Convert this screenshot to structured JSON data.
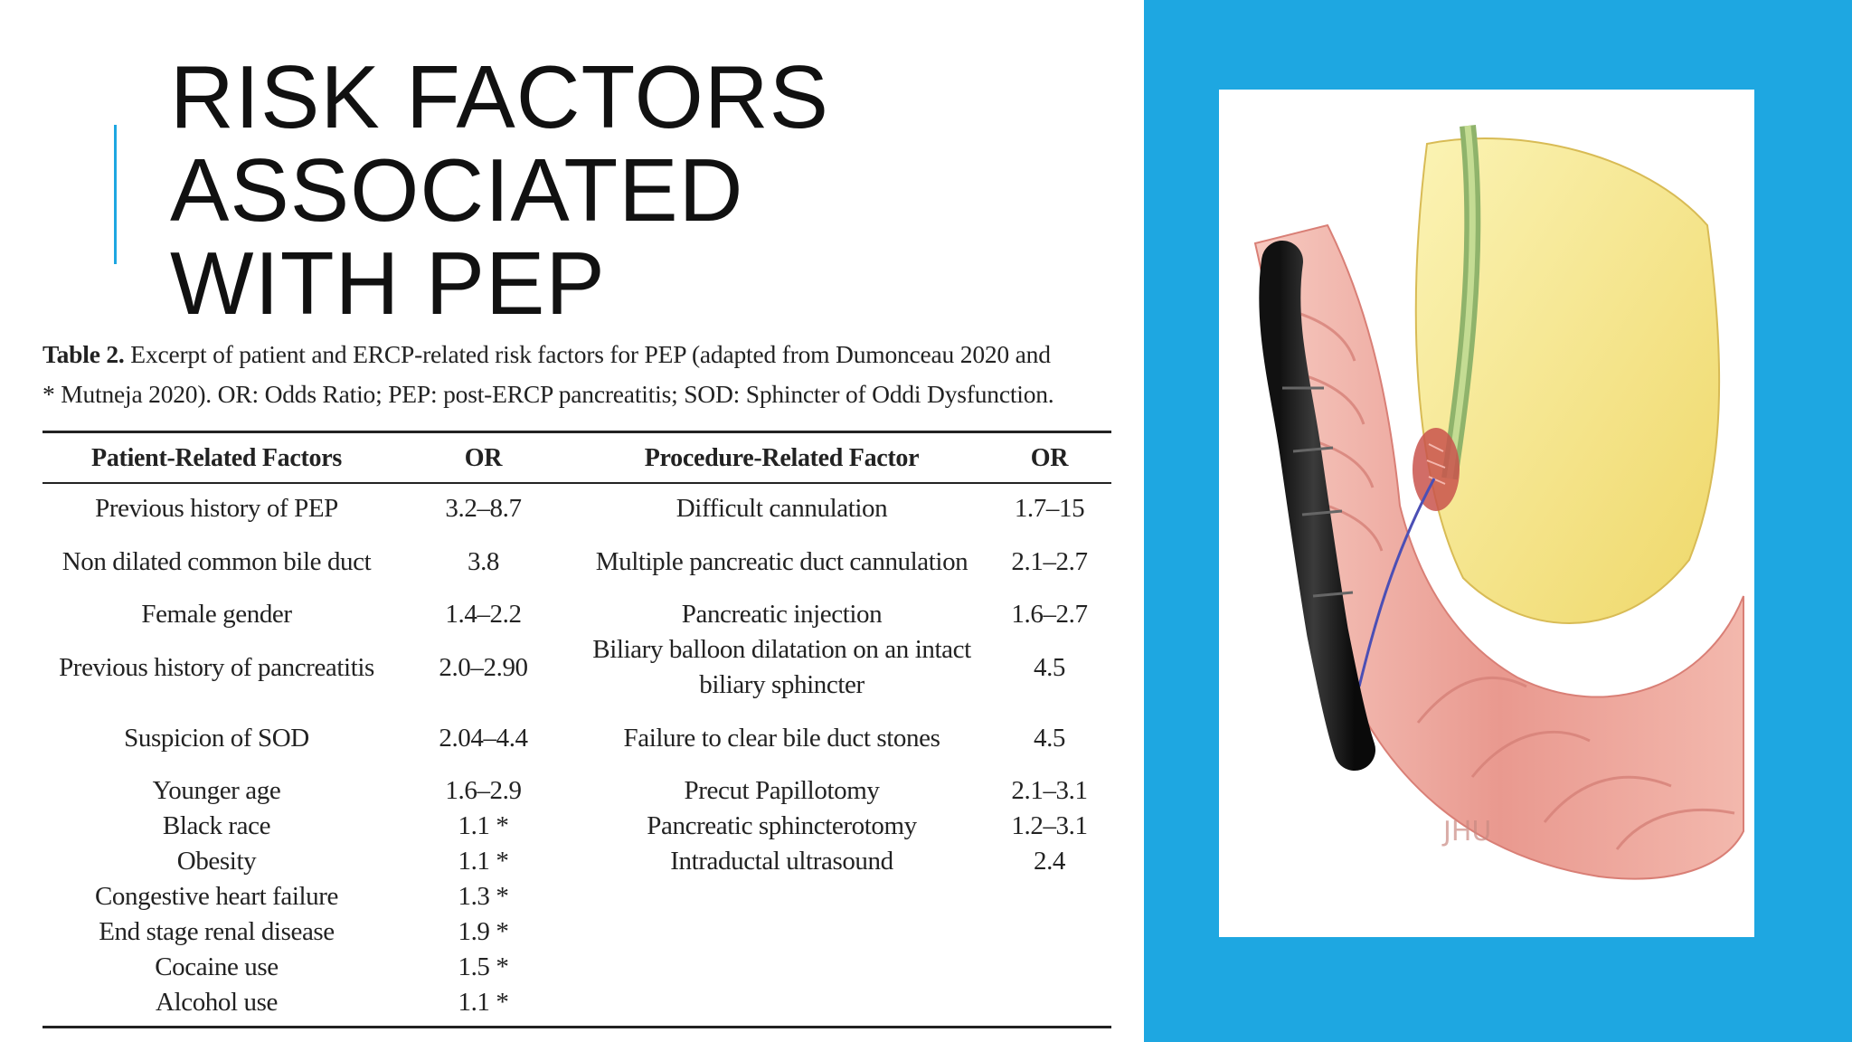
{
  "slide": {
    "title_lines": [
      "RISK FACTORS",
      "ASSOCIATED",
      "WITH PEP"
    ],
    "accent_color": "#1ea7e1",
    "panel_color": "#1ea7e1"
  },
  "table": {
    "caption_bold": "Table 2.",
    "caption_line1": "Excerpt of patient and ERCP-related risk factors for PEP (adapted from Dumonceau 2020 and",
    "caption_line2": "* Mutneja 2020). OR: Odds Ratio; PEP: post-ERCP pancreatitis; SOD: Sphincter of Oddi Dysfunction.",
    "headers": [
      "Patient-Related Factors",
      "OR",
      "Procedure-Related Factor",
      "OR"
    ],
    "rows": [
      [
        "Previous history of PEP",
        "3.2–8.7",
        "Difficult cannulation",
        "1.7–15"
      ],
      [
        "Non dilated common bile duct",
        "3.8",
        "Multiple pancreatic duct cannulation",
        "2.1–2.7"
      ],
      [
        "Female gender",
        "1.4–2.2",
        "Pancreatic injection",
        "1.6–2.7"
      ],
      [
        "Previous history of pancreatitis",
        "2.0–2.90",
        "Biliary balloon dilatation on an intact biliary sphincter",
        "4.5"
      ],
      [
        "Suspicion of SOD",
        "2.04–4.4",
        "Failure to clear bile duct stones",
        "4.5"
      ],
      [
        "Younger age",
        "1.6–2.9",
        "Precut Papillotomy",
        "2.1–3.1"
      ],
      [
        "Black race",
        "1.1 *",
        "Pancreatic sphincterotomy",
        "1.2–3.1"
      ],
      [
        "Obesity",
        "1.1 *",
        "Intraductal ultrasound",
        "2.4"
      ],
      [
        "Congestive heart failure",
        "1.3 *",
        "",
        ""
      ],
      [
        "End stage renal disease",
        "1.9 *",
        "",
        ""
      ],
      [
        "Cocaine use",
        "1.5 *",
        "",
        ""
      ],
      [
        "Alcohol use",
        "1.1 *",
        "",
        ""
      ]
    ]
  },
  "illustration": {
    "watermark": "JHU",
    "icon": "endoscope-duodenum-illustration"
  }
}
